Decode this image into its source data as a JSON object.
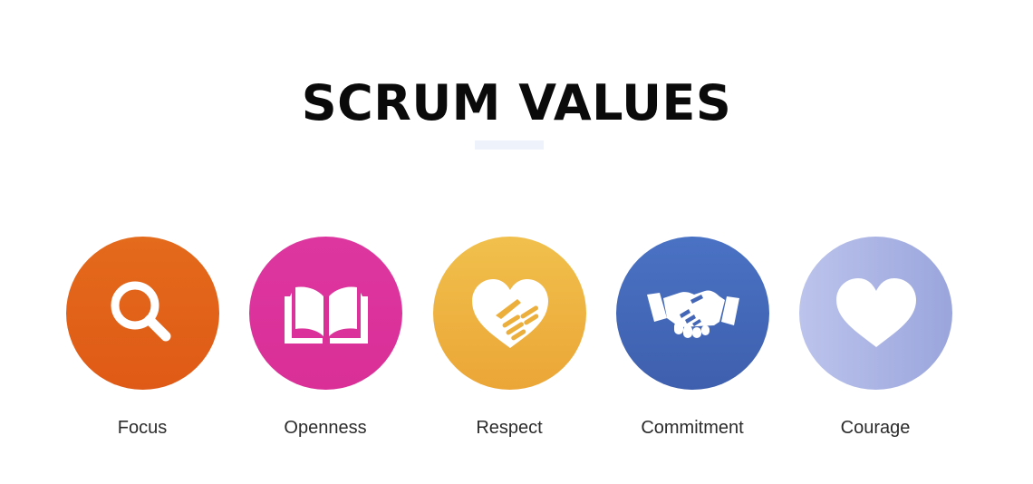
{
  "title": "SCRUM VALUES",
  "values": [
    {
      "label": "Focus",
      "icon": "magnifying-glass-icon",
      "color": "#e0601a"
    },
    {
      "label": "Openness",
      "icon": "open-book-icon",
      "color": "#da3399"
    },
    {
      "label": "Respect",
      "icon": "heart-hands-icon",
      "color": "#eeb340"
    },
    {
      "label": "Commitment",
      "icon": "handshake-icon",
      "color": "#4468b8"
    },
    {
      "label": "Courage",
      "icon": "heart-icon",
      "color": "#abb4e4"
    }
  ]
}
